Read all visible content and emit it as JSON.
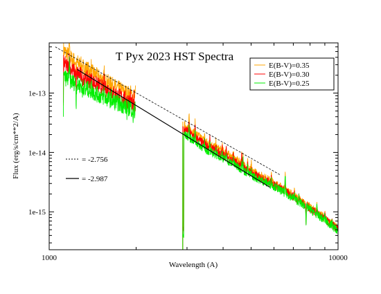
{
  "chart_data": {
    "type": "line",
    "title": "T Pyx 2023 HST Spectra",
    "xlabel": "Wavelength (A)",
    "ylabel": "Flux (erg/s/cm**2/A)",
    "x_scale": "log",
    "y_scale": "log",
    "xlim": [
      1000,
      10000
    ],
    "ylim": [
      2.3e-16,
      7e-13
    ],
    "x_ticks": [
      {
        "value": 1000,
        "label": "1000"
      },
      {
        "value": 10000,
        "label": "10000"
      }
    ],
    "y_ticks": [
      {
        "value": 1e-15,
        "label": "1e-15"
      },
      {
        "value": 1e-14,
        "label": "1e-14"
      },
      {
        "value": 1e-13,
        "label": "1e-13"
      }
    ],
    "grid": false,
    "legend_position": "top-right",
    "series": [
      {
        "name": "E(B-V)=0.35",
        "color": "#ffa500",
        "segments": [
          {
            "start": 1120,
            "end": 1990,
            "anchors": [
              [
                1120,
                5.3e-13
              ],
              [
                1200,
                3.7e-13
              ],
              [
                1300,
                2.9e-13
              ],
              [
                1500,
                1.8e-13
              ],
              [
                1700,
                1.25e-13
              ],
              [
                1990,
                8.5e-14
              ]
            ]
          },
          {
            "start": 2900,
            "end": 10000,
            "anchors": [
              [
                2900,
                3e-14
              ],
              [
                3000,
                2.7e-14
              ],
              [
                3500,
                1.5e-14
              ],
              [
                4000,
                1.05e-14
              ],
              [
                4500,
                7.2e-15
              ],
              [
                5000,
                5e-15
              ],
              [
                6000,
                3.1e-15
              ],
              [
                7000,
                1.9e-15
              ],
              [
                8000,
                1.2e-15
              ],
              [
                9000,
                7.8e-16
              ],
              [
                10000,
                5.2e-16
              ]
            ]
          }
        ]
      },
      {
        "name": "E(B-V)=0.30",
        "color": "#ff0000",
        "segments": [
          {
            "start": 1120,
            "end": 1990,
            "anchors": [
              [
                1120,
                3.2e-13
              ],
              [
                1200,
                2.4e-13
              ],
              [
                1300,
                1.95e-13
              ],
              [
                1500,
                1.3e-13
              ],
              [
                1700,
                9.5e-14
              ],
              [
                1990,
                6.6e-14
              ]
            ]
          },
          {
            "start": 2900,
            "end": 10000,
            "anchors": [
              [
                2900,
                2.5e-14
              ],
              [
                3000,
                2.3e-14
              ],
              [
                3500,
                1.3e-14
              ],
              [
                4000,
                9.2e-15
              ],
              [
                4500,
                6.4e-15
              ],
              [
                5000,
                4.5e-15
              ],
              [
                6000,
                2.9e-15
              ],
              [
                7000,
                1.8e-15
              ],
              [
                8000,
                1.15e-15
              ],
              [
                9000,
                7.5e-16
              ],
              [
                10000,
                5e-16
              ]
            ]
          }
        ]
      },
      {
        "name": "E(B-V)=0.25",
        "color": "#00ee00",
        "segments": [
          {
            "start": 1120,
            "end": 1990,
            "anchors": [
              [
                1120,
                1.9e-13
              ],
              [
                1200,
                1.55e-13
              ],
              [
                1300,
                1.3e-13
              ],
              [
                1500,
                9e-14
              ],
              [
                1700,
                7e-14
              ],
              [
                1990,
                5e-14
              ]
            ]
          },
          {
            "start": 2900,
            "end": 10000,
            "anchors": [
              [
                2900,
                2e-14
              ],
              [
                3000,
                1.9e-14
              ],
              [
                3500,
                1.1e-14
              ],
              [
                4000,
                8e-15
              ],
              [
                4500,
                5.7e-15
              ],
              [
                5000,
                4.1e-15
              ],
              [
                6000,
                2.7e-15
              ],
              [
                7000,
                1.7e-15
              ],
              [
                8000,
                1.1e-15
              ],
              [
                9000,
                7.2e-16
              ],
              [
                10000,
                4.8e-16
              ]
            ]
          }
        ]
      }
    ],
    "power_law_fits": [
      {
        "label": "= -2.756",
        "slope": -2.756,
        "style": "dashed",
        "x0": 1050,
        "y0": 6e-13,
        "x1": 6300,
        "y1": 4.2e-15
      },
      {
        "label": "= -2.987",
        "slope": -2.987,
        "style": "solid",
        "x0": 1250,
        "y0": 2.5e-13,
        "x1": 5800,
        "y1": 2.6e-15
      }
    ]
  }
}
